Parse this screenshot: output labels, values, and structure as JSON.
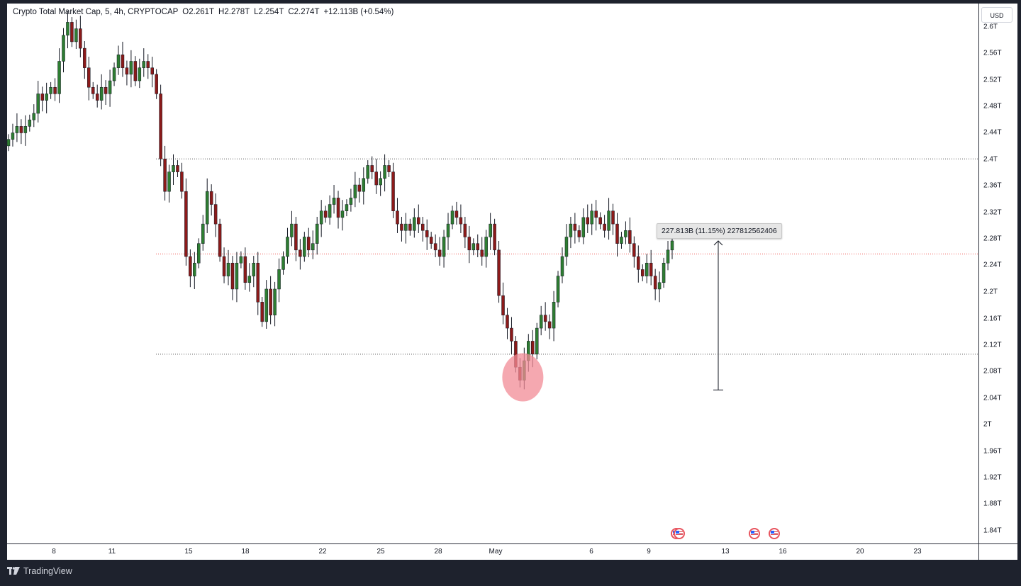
{
  "legend": {
    "title": "Crypto Total Market Cap, 5, 4h, CRYPTOCAP",
    "open": "O2.261T",
    "high": "H2.278T",
    "low": "L2.254T",
    "close": "C2.274T",
    "change": "+12.113B (+0.54%)"
  },
  "currency": "USD",
  "measure_label": "227.813B (11.15%) 227812562406",
  "brand": "TradingView",
  "price_axis": {
    "labels": [
      "2.6T",
      "2.56T",
      "2.52T",
      "2.48T",
      "2.44T",
      "2.4T",
      "2.36T",
      "2.32T",
      "2.28T",
      "2.24T",
      "2.2T",
      "2.16T",
      "2.12T",
      "2.08T",
      "2.04T",
      "2T",
      "1.96T",
      "1.92T",
      "1.88T",
      "1.84T"
    ],
    "values": [
      2.6,
      2.56,
      2.52,
      2.48,
      2.44,
      2.4,
      2.36,
      2.32,
      2.28,
      2.24,
      2.2,
      2.16,
      2.12,
      2.08,
      2.04,
      2.0,
      1.96,
      1.92,
      1.88,
      1.84
    ]
  },
  "time_axis": {
    "labels": [
      "8",
      "11",
      "15",
      "18",
      "22",
      "25",
      "28",
      "May",
      "6",
      "9",
      "13",
      "16",
      "20",
      "23"
    ]
  },
  "levels": {
    "resistance": 2.4,
    "midline": 2.254,
    "support": 2.1
  },
  "colors": {
    "up": "#26a69a",
    "up_body": "#2e7d32",
    "down": "#8b1a1a",
    "wick": "#131722",
    "midline": "#ef5350",
    "highlight": "#f28b95"
  },
  "chart_data": {
    "type": "candlestick",
    "symbol": "CRYPTOCAP",
    "interval": "4h",
    "close_series": [
      2.43,
      2.44,
      2.45,
      2.44,
      2.45,
      2.46,
      2.47,
      2.5,
      2.49,
      2.5,
      2.51,
      2.5,
      2.55,
      2.59,
      2.61,
      2.58,
      2.6,
      2.57,
      2.54,
      2.51,
      2.5,
      2.49,
      2.51,
      2.5,
      2.52,
      2.54,
      2.56,
      2.54,
      2.53,
      2.55,
      2.52,
      2.54,
      2.55,
      2.54,
      2.53,
      2.5,
      2.4,
      2.35,
      2.38,
      2.39,
      2.38,
      2.35,
      2.25,
      2.22,
      2.24,
      2.27,
      2.3,
      2.35,
      2.33,
      2.3,
      2.25,
      2.22,
      2.24,
      2.2,
      2.24,
      2.25,
      2.21,
      2.22,
      2.24,
      2.18,
      2.15,
      2.2,
      2.16,
      2.2,
      2.23,
      2.25,
      2.28,
      2.3,
      2.26,
      2.25,
      2.28,
      2.26,
      2.27,
      2.3,
      2.32,
      2.31,
      2.33,
      2.34,
      2.31,
      2.32,
      2.33,
      2.34,
      2.36,
      2.35,
      2.37,
      2.39,
      2.38,
      2.36,
      2.37,
      2.39,
      2.38,
      2.32,
      2.3,
      2.29,
      2.3,
      2.29,
      2.31,
      2.3,
      2.29,
      2.28,
      2.27,
      2.26,
      2.25,
      2.28,
      2.3,
      2.32,
      2.31,
      2.3,
      2.28,
      2.26,
      2.27,
      2.26,
      2.25,
      2.28,
      2.3,
      2.26,
      2.19,
      2.16,
      2.14,
      2.12,
      2.08,
      2.06,
      2.09,
      2.12,
      2.1,
      2.14,
      2.16,
      2.15,
      2.14,
      2.18,
      2.22,
      2.25,
      2.28,
      2.3,
      2.29,
      2.28,
      2.31,
      2.3,
      2.32,
      2.31,
      2.3,
      2.29,
      2.32,
      2.3,
      2.27,
      2.28,
      2.29,
      2.27,
      2.25,
      2.23,
      2.22,
      2.24,
      2.22,
      2.2,
      2.21,
      2.24,
      2.26,
      2.274
    ],
    "ylim": [
      1.82,
      2.63
    ]
  }
}
